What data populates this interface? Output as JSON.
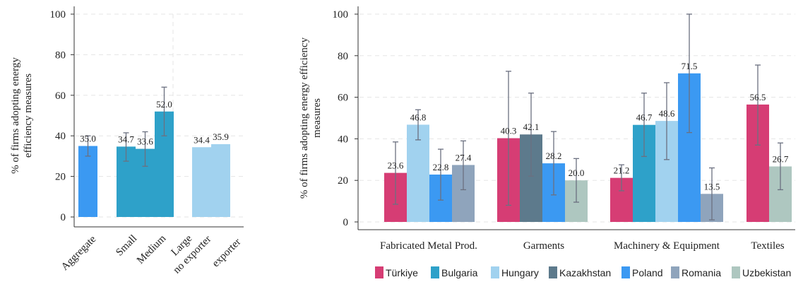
{
  "colors": {
    "turkiye": "#d63d74",
    "bulgaria": "#2ea1c9",
    "hungary": "#a1d2ef",
    "kazakhstan": "#5d7a8c",
    "poland": "#3b99f2",
    "romania": "#8fa4bc",
    "uzbekistan": "#aec7c0",
    "errorbar": "#6b7080",
    "grid": "#e5e5e5",
    "axis": "#333333"
  },
  "chart_data": [
    {
      "type": "bar",
      "ylabel": "% of firms adopting energy efficiency measures",
      "ylim": [
        0,
        100
      ],
      "yticks": [
        0,
        20,
        40,
        60,
        80,
        100
      ],
      "grid": true,
      "categories": [
        "Aggregate",
        "Small",
        "Medium",
        "Large",
        "no exporter",
        "exporter"
      ],
      "values": [
        35.0,
        34.7,
        33.6,
        52.0,
        34.4,
        35.9
      ],
      "value_labels": [
        "35.0",
        "34.7",
        "33.6",
        "52.0",
        "34.4",
        "35.9"
      ],
      "error_low": [
        30.0,
        27.5,
        25.0,
        40.0,
        null,
        null
      ],
      "error_high": [
        40.0,
        41.5,
        42.0,
        64.0,
        null,
        null
      ],
      "bar_colors": [
        "#3b99f2",
        "#2ea1c9",
        "#2ea1c9",
        "#2ea1c9",
        "#a1d2ef",
        "#a1d2ef"
      ]
    },
    {
      "type": "bar",
      "ylabel": "% of firms adopting energy efficiency measures",
      "ylim": [
        0,
        100
      ],
      "yticks": [
        0,
        20,
        40,
        60,
        80,
        100
      ],
      "grid": true,
      "legend_position": "bottom",
      "series_names": [
        "Türkiye",
        "Bulgaria",
        "Hungary",
        "Kazakhstan",
        "Poland",
        "Romania",
        "Uzbekistan"
      ],
      "groups": [
        {
          "label": "Fabricated Metal Prod.",
          "bars": [
            {
              "series": "Türkiye",
              "value": 23.6,
              "label": "23.6",
              "low": 8.5,
              "high": 38.5
            },
            {
              "series": "Hungary",
              "value": 46.8,
              "label": "46.8",
              "low": 39.5,
              "high": 54.0
            },
            {
              "series": "Poland",
              "value": 22.8,
              "label": "22.8",
              "low": 10.5,
              "high": 35.0
            },
            {
              "series": "Romania",
              "value": 27.4,
              "label": "27.4",
              "low": 15.5,
              "high": 39.0
            }
          ]
        },
        {
          "label": "Garments",
          "bars": [
            {
              "series": "Türkiye",
              "value": 40.3,
              "label": "40.3",
              "low": 8.0,
              "high": 72.5
            },
            {
              "series": "Kazakhstan",
              "value": 42.1,
              "label": "42.1",
              "low": 22.0,
              "high": 62.0
            },
            {
              "series": "Poland",
              "value": 28.2,
              "label": "28.2",
              "low": 13.0,
              "high": 43.5
            },
            {
              "series": "Uzbekistan",
              "value": 20.0,
              "label": "20.0",
              "low": 9.5,
              "high": 30.5
            }
          ]
        },
        {
          "label": "Machinery & Equipment",
          "bars": [
            {
              "series": "Türkiye",
              "value": 21.2,
              "label": "21.2",
              "low": 15.0,
              "high": 27.5
            },
            {
              "series": "Bulgaria",
              "value": 46.7,
              "label": "46.7",
              "low": 31.5,
              "high": 62.0
            },
            {
              "series": "Hungary",
              "value": 48.6,
              "label": "48.6",
              "low": 30.0,
              "high": 67.0
            },
            {
              "series": "Poland",
              "value": 71.5,
              "label": "71.5",
              "low": 43.0,
              "high": 100.0
            },
            {
              "series": "Romania",
              "value": 13.5,
              "label": "13.5",
              "low": 1.0,
              "high": 26.0
            }
          ]
        },
        {
          "label": "Textiles",
          "bars": [
            {
              "series": "Türkiye",
              "value": 56.5,
              "label": "56.5",
              "low": 37.0,
              "high": 75.5
            },
            {
              "series": "Uzbekistan",
              "value": 26.7,
              "label": "26.7",
              "low": 15.5,
              "high": 38.0
            }
          ]
        }
      ]
    }
  ]
}
